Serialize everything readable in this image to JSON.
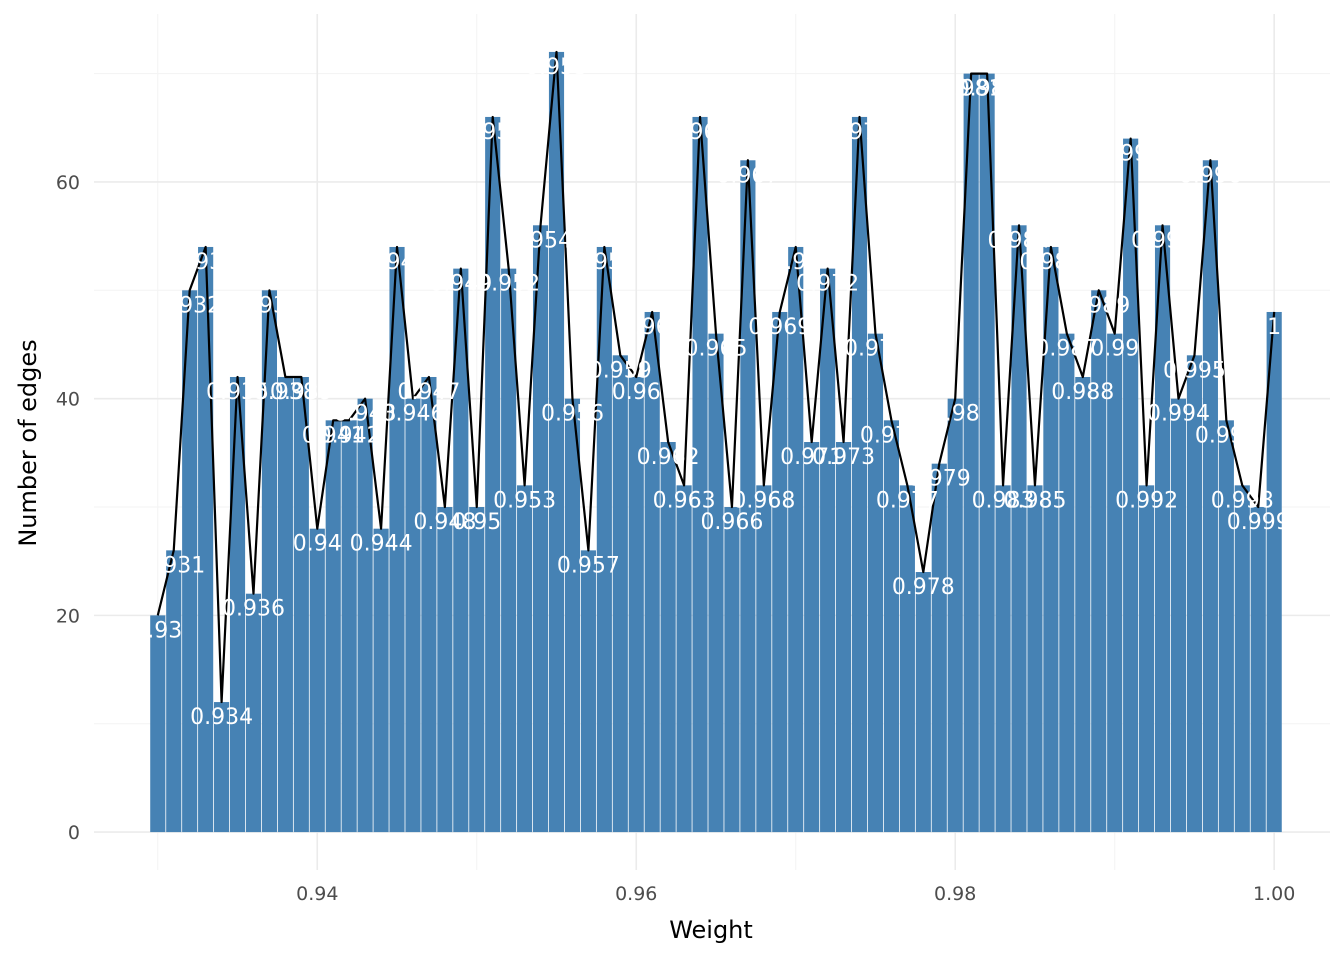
{
  "colors": {
    "bar": "#4682b4",
    "line": "#000000",
    "label": "#ffffff"
  },
  "chart_data": {
    "type": "bar",
    "title": "",
    "xlabel": "Weight",
    "ylabel": "Number of edges",
    "xlim": [
      0.926,
      1.0035
    ],
    "ylim": [
      -3.5,
      75.5
    ],
    "xticks": [
      0.94,
      0.96,
      0.98,
      1.0
    ],
    "xtick_labels": [
      "0.94",
      "0.96",
      "0.98",
      "1.00"
    ],
    "yticks": [
      0,
      20,
      40,
      60
    ],
    "ytick_labels": [
      "0",
      "20",
      "40",
      "60"
    ],
    "grid": true,
    "legend": "none",
    "bar_width": 0.00095,
    "overlay_line": true,
    "x": [
      0.93,
      0.931,
      0.932,
      0.933,
      0.934,
      0.935,
      0.936,
      0.937,
      0.938,
      0.939,
      0.94,
      0.941,
      0.942,
      0.943,
      0.944,
      0.945,
      0.946,
      0.947,
      0.948,
      0.949,
      0.95,
      0.951,
      0.952,
      0.953,
      0.954,
      0.955,
      0.956,
      0.957,
      0.958,
      0.959,
      0.96,
      0.961,
      0.962,
      0.963,
      0.964,
      0.965,
      0.966,
      0.967,
      0.968,
      0.969,
      0.97,
      0.971,
      0.972,
      0.973,
      0.974,
      0.975,
      0.976,
      0.977,
      0.978,
      0.979,
      0.98,
      0.981,
      0.982,
      0.983,
      0.984,
      0.985,
      0.986,
      0.987,
      0.988,
      0.989,
      0.99,
      0.991,
      0.992,
      0.993,
      0.994,
      0.995,
      0.996,
      0.997,
      0.998,
      0.999,
      1.0
    ],
    "values": [
      20,
      26,
      50,
      54,
      12,
      42,
      22,
      50,
      42,
      42,
      28,
      38,
      38,
      40,
      28,
      54,
      40,
      42,
      30,
      52,
      30,
      66,
      52,
      32,
      56,
      72,
      40,
      26,
      54,
      44,
      42,
      48,
      36,
      32,
      66,
      46,
      30,
      62,
      32,
      48,
      54,
      36,
      52,
      36,
      66,
      46,
      38,
      32,
      24,
      34,
      40,
      70,
      70,
      32,
      56,
      32,
      54,
      46,
      42,
      50,
      46,
      64,
      32,
      56,
      40,
      44,
      62,
      38,
      32,
      30,
      48
    ],
    "labels": [
      "0.93",
      "0.931",
      "0.932",
      "0.933",
      "0.934",
      "0.935",
      "0.936",
      "0.937",
      "0.938",
      "0.939",
      "0.94",
      "0.941",
      "0.942",
      "0.943",
      "0.944",
      "0.945",
      "0.946",
      "0.947",
      "0.948",
      "0.949",
      "0.95",
      "0.951",
      "0.952",
      "0.953",
      "0.954",
      "0.955",
      "0.956",
      "0.957",
      "0.958",
      "0.959",
      "0.96",
      "0.961",
      "0.962",
      "0.963",
      "0.964",
      "0.965",
      "0.966",
      "0.967",
      "0.968",
      "0.969",
      "0.97",
      "0.971",
      "0.972",
      "0.973",
      "0.974",
      "0.975",
      "0.976",
      "0.977",
      "0.978",
      "0.979",
      "0.98",
      "0.981",
      "0.982",
      "0.983",
      "0.984",
      "0.985",
      "0.986",
      "0.987",
      "0.988",
      "0.989",
      "0.99",
      "0.991",
      "0.992",
      "0.993",
      "0.994",
      "0.995",
      "0.996",
      "0.997",
      "0.998",
      "0.999",
      "1"
    ]
  }
}
